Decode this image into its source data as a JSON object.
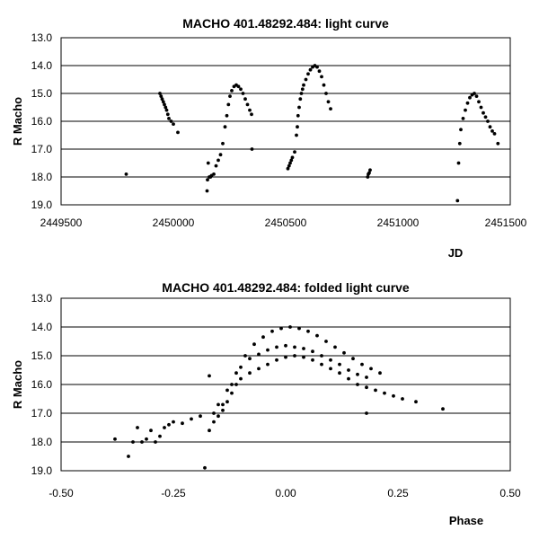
{
  "chart_data": [
    {
      "type": "scatter",
      "title": "MACHO 401.48292.484: light curve",
      "xlabel": "JD",
      "ylabel": "R Macho",
      "xlim": [
        2449500,
        2451500
      ],
      "ylim": [
        13.0,
        19.0
      ],
      "y_inverted": true,
      "x_ticks": [
        "2449500",
        "2450000",
        "2450500",
        "2451000",
        "2451500"
      ],
      "y_ticks": [
        "13.0",
        "14.0",
        "15.0",
        "16.0",
        "17.0",
        "18.0",
        "19.0"
      ],
      "grid": "horizontal",
      "legend": "none",
      "series": [
        {
          "points": [
            [
              2449790,
              17.9
            ],
            [
              2449940,
              15.0
            ],
            [
              2449945,
              15.1
            ],
            [
              2449950,
              15.2
            ],
            [
              2449955,
              15.3
            ],
            [
              2449960,
              15.4
            ],
            [
              2449965,
              15.5
            ],
            [
              2449970,
              15.6
            ],
            [
              2449975,
              15.75
            ],
            [
              2449980,
              15.9
            ],
            [
              2449990,
              16.0
            ],
            [
              2450000,
              16.1
            ],
            [
              2450020,
              16.4
            ],
            [
              2450150,
              18.5
            ],
            [
              2450152,
              18.1
            ],
            [
              2450155,
              17.5
            ],
            [
              2450160,
              18.0
            ],
            [
              2450165,
              18.0
            ],
            [
              2450170,
              17.95
            ],
            [
              2450180,
              17.9
            ],
            [
              2450190,
              17.6
            ],
            [
              2450200,
              17.4
            ],
            [
              2450210,
              17.2
            ],
            [
              2450220,
              16.8
            ],
            [
              2450230,
              16.2
            ],
            [
              2450238,
              15.8
            ],
            [
              2450245,
              15.4
            ],
            [
              2450252,
              15.1
            ],
            [
              2450260,
              14.9
            ],
            [
              2450270,
              14.75
            ],
            [
              2450280,
              14.7
            ],
            [
              2450290,
              14.75
            ],
            [
              2450300,
              14.85
            ],
            [
              2450310,
              15.0
            ],
            [
              2450320,
              15.2
            ],
            [
              2450330,
              15.4
            ],
            [
              2450340,
              15.6
            ],
            [
              2450348,
              15.75
            ],
            [
              2450350,
              17.0
            ],
            [
              2450510,
              17.7
            ],
            [
              2450515,
              17.6
            ],
            [
              2450520,
              17.5
            ],
            [
              2450525,
              17.4
            ],
            [
              2450530,
              17.3
            ],
            [
              2450540,
              17.1
            ],
            [
              2450548,
              16.5
            ],
            [
              2450552,
              16.2
            ],
            [
              2450555,
              15.8
            ],
            [
              2450560,
              15.5
            ],
            [
              2450565,
              15.2
            ],
            [
              2450570,
              15.0
            ],
            [
              2450575,
              14.85
            ],
            [
              2450580,
              14.7
            ],
            [
              2450590,
              14.5
            ],
            [
              2450600,
              14.3
            ],
            [
              2450610,
              14.15
            ],
            [
              2450620,
              14.05
            ],
            [
              2450630,
              14.0
            ],
            [
              2450640,
              14.05
            ],
            [
              2450650,
              14.2
            ],
            [
              2450660,
              14.4
            ],
            [
              2450670,
              14.7
            ],
            [
              2450680,
              15.0
            ],
            [
              2450690,
              15.3
            ],
            [
              2450700,
              15.55
            ],
            [
              2450865,
              18.0
            ],
            [
              2450868,
              17.9
            ],
            [
              2450872,
              17.85
            ],
            [
              2450876,
              17.75
            ],
            [
              2451265,
              18.85
            ],
            [
              2451270,
              17.5
            ],
            [
              2451275,
              16.8
            ],
            [
              2451280,
              16.3
            ],
            [
              2451290,
              15.9
            ],
            [
              2451300,
              15.6
            ],
            [
              2451310,
              15.35
            ],
            [
              2451320,
              15.15
            ],
            [
              2451330,
              15.05
            ],
            [
              2451340,
              15.0
            ],
            [
              2451350,
              15.1
            ],
            [
              2451360,
              15.3
            ],
            [
              2451370,
              15.5
            ],
            [
              2451380,
              15.7
            ],
            [
              2451390,
              15.85
            ],
            [
              2451400,
              16.0
            ],
            [
              2451410,
              16.2
            ],
            [
              2451420,
              16.35
            ],
            [
              2451430,
              16.45
            ],
            [
              2451445,
              16.8
            ]
          ]
        }
      ]
    },
    {
      "type": "scatter",
      "title": "MACHO 401.48292.484: folded light curve",
      "xlabel": "Phase",
      "ylabel": "R Macho",
      "xlim": [
        -0.5,
        0.5
      ],
      "ylim": [
        13.0,
        19.0
      ],
      "y_inverted": true,
      "x_ticks": [
        "-0.50",
        "-0.25",
        "0.00",
        "0.25",
        "0.50"
      ],
      "y_ticks": [
        "13.0",
        "14.0",
        "15.0",
        "16.0",
        "17.0",
        "18.0",
        "19.0"
      ],
      "grid": "horizontal",
      "legend": "none",
      "series": [
        {
          "points": [
            [
              -0.38,
              17.9
            ],
            [
              -0.35,
              18.5
            ],
            [
              -0.34,
              18.0
            ],
            [
              -0.33,
              17.5
            ],
            [
              -0.32,
              18.0
            ],
            [
              -0.31,
              17.9
            ],
            [
              -0.3,
              17.6
            ],
            [
              -0.29,
              18.0
            ],
            [
              -0.28,
              17.8
            ],
            [
              -0.27,
              17.5
            ],
            [
              -0.26,
              17.4
            ],
            [
              -0.25,
              17.3
            ],
            [
              -0.23,
              17.35
            ],
            [
              -0.21,
              17.2
            ],
            [
              -0.19,
              17.1
            ],
            [
              -0.18,
              18.9
            ],
            [
              -0.17,
              15.7
            ],
            [
              -0.17,
              17.6
            ],
            [
              -0.16,
              17.3
            ],
            [
              -0.15,
              17.1
            ],
            [
              -0.14,
              16.9
            ],
            [
              -0.13,
              16.6
            ],
            [
              -0.12,
              16.3
            ],
            [
              -0.11,
              16.0
            ],
            [
              -0.1,
              15.8
            ],
            [
              -0.08,
              15.6
            ],
            [
              -0.06,
              15.45
            ],
            [
              -0.04,
              15.3
            ],
            [
              -0.02,
              15.15
            ],
            [
              0.0,
              15.05
            ],
            [
              0.02,
              15.0
            ],
            [
              0.04,
              15.05
            ],
            [
              0.06,
              15.15
            ],
            [
              0.08,
              15.3
            ],
            [
              0.1,
              15.45
            ],
            [
              0.12,
              15.6
            ],
            [
              0.14,
              15.8
            ],
            [
              0.16,
              16.0
            ],
            [
              0.18,
              16.1
            ],
            [
              0.2,
              16.2
            ],
            [
              0.22,
              16.3
            ],
            [
              0.24,
              16.4
            ],
            [
              0.26,
              16.5
            ],
            [
              0.29,
              16.6
            ],
            [
              0.35,
              16.85
            ],
            [
              -0.16,
              17.0
            ],
            [
              -0.14,
              16.7
            ],
            [
              -0.12,
              16.0
            ],
            [
              -0.1,
              15.4
            ],
            [
              -0.08,
              15.1
            ],
            [
              -0.06,
              14.95
            ],
            [
              -0.04,
              14.8
            ],
            [
              -0.02,
              14.7
            ],
            [
              0.0,
              14.65
            ],
            [
              0.02,
              14.7
            ],
            [
              0.04,
              14.75
            ],
            [
              0.06,
              14.85
            ],
            [
              0.08,
              15.0
            ],
            [
              0.1,
              15.15
            ],
            [
              0.12,
              15.3
            ],
            [
              0.14,
              15.5
            ],
            [
              0.16,
              15.65
            ],
            [
              0.18,
              15.75
            ],
            [
              -0.15,
              16.7
            ],
            [
              -0.13,
              16.2
            ],
            [
              -0.11,
              15.6
            ],
            [
              -0.09,
              15.0
            ],
            [
              -0.07,
              14.6
            ],
            [
              -0.05,
              14.35
            ],
            [
              -0.03,
              14.15
            ],
            [
              -0.01,
              14.05
            ],
            [
              0.01,
              14.0
            ],
            [
              0.03,
              14.05
            ],
            [
              0.05,
              14.15
            ],
            [
              0.07,
              14.3
            ],
            [
              0.09,
              14.5
            ],
            [
              0.11,
              14.7
            ],
            [
              0.13,
              14.9
            ],
            [
              0.15,
              15.1
            ],
            [
              0.17,
              15.3
            ],
            [
              0.19,
              15.45
            ],
            [
              0.21,
              15.6
            ],
            [
              0.18,
              17.0
            ]
          ]
        }
      ]
    }
  ]
}
